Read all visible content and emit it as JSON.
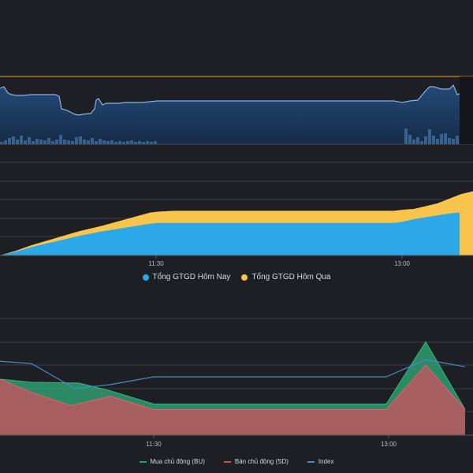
{
  "colors": {
    "background": "#1e1f25",
    "grid": "#3a3c44",
    "today": "#2ba8e8",
    "yesterday": "#f9c44c",
    "buy": "#2e9e6e",
    "sell": "#c7525e",
    "index": "#4f86c6",
    "overview_line": "#8fb2dc",
    "overview_ref": "#e8a531"
  },
  "chart_data": [
    {
      "type": "area",
      "role": "overview-navigator",
      "x": [
        0,
        5,
        10,
        15,
        20,
        30,
        40,
        50,
        60,
        70,
        75,
        78,
        85,
        95,
        100,
        105,
        115,
        120,
        122,
        125,
        130,
        135,
        140,
        150,
        160,
        170,
        180,
        190,
        200,
        250,
        300,
        350,
        400,
        450,
        500,
        510,
        520,
        530,
        540,
        545,
        550,
        560,
        570,
        575,
        580,
        583
      ],
      "values": [
        112,
        110,
        118,
        120,
        121,
        121,
        120,
        120,
        120,
        120,
        122,
        138,
        140,
        145,
        146,
        145,
        144,
        138,
        127,
        125,
        133,
        131,
        131,
        131,
        130,
        130,
        130,
        129,
        128,
        128,
        128,
        128,
        128,
        128,
        128,
        130,
        128,
        127,
        115,
        110,
        110,
        113,
        113,
        108,
        120,
        119
      ],
      "volume": [
        [
          0,
          3
        ],
        [
          5,
          5
        ],
        [
          10,
          8
        ],
        [
          15,
          10
        ],
        [
          20,
          6
        ],
        [
          25,
          11
        ],
        [
          30,
          5
        ],
        [
          35,
          9
        ],
        [
          40,
          4
        ],
        [
          45,
          7
        ],
        [
          50,
          6
        ],
        [
          55,
          5
        ],
        [
          60,
          8
        ],
        [
          65,
          4
        ],
        [
          70,
          6
        ],
        [
          75,
          12
        ],
        [
          80,
          6
        ],
        [
          85,
          5
        ],
        [
          90,
          4
        ],
        [
          95,
          9
        ],
        [
          100,
          10
        ],
        [
          105,
          6
        ],
        [
          110,
          5
        ],
        [
          115,
          8
        ],
        [
          120,
          4
        ],
        [
          125,
          7
        ],
        [
          130,
          5
        ],
        [
          135,
          4
        ],
        [
          140,
          5
        ],
        [
          145,
          3
        ],
        [
          150,
          4
        ],
        [
          155,
          3
        ],
        [
          160,
          4
        ],
        [
          165,
          5
        ],
        [
          170,
          3
        ],
        [
          175,
          4
        ],
        [
          180,
          3
        ],
        [
          185,
          4
        ],
        [
          190,
          3
        ],
        [
          195,
          4
        ],
        [
          513,
          20
        ],
        [
          518,
          12
        ],
        [
          523,
          6
        ],
        [
          528,
          9
        ],
        [
          533,
          4
        ],
        [
          538,
          10
        ],
        [
          543,
          19
        ],
        [
          548,
          11
        ],
        [
          553,
          7
        ],
        [
          558,
          13
        ],
        [
          563,
          14
        ],
        [
          568,
          8
        ],
        [
          573,
          7
        ],
        [
          578,
          11
        ]
      ],
      "ref_line": 97
    },
    {
      "type": "area",
      "role": "cumulative-trading-value",
      "x_ticks": [
        "11:30",
        "13:00"
      ],
      "series": [
        {
          "name": "Tổng GTGD Hôm Nay",
          "x": [
            0,
            20,
            40,
            60,
            80,
            100,
            130,
            160,
            190,
            200,
            220,
            260,
            300,
            350,
            400,
            450,
            500,
            510,
            525,
            540,
            555,
            570,
            580,
            583
          ],
          "values": [
            0,
            4,
            9,
            13,
            17,
            21,
            26,
            30,
            34,
            35,
            35,
            35,
            35,
            35,
            35,
            35,
            35,
            36,
            39,
            41,
            43,
            45,
            46,
            46
          ]
        },
        {
          "name": "Tổng GTGD Hôm Qua",
          "x": [
            0,
            20,
            40,
            60,
            80,
            100,
            130,
            160,
            190,
            200,
            220,
            260,
            300,
            350,
            400,
            450,
            500,
            510,
            525,
            540,
            555,
            570,
            585,
            600
          ],
          "values": [
            0,
            5,
            11,
            16,
            21,
            26,
            32,
            39,
            46,
            47,
            48,
            48,
            48,
            48,
            48,
            48,
            48,
            49,
            50,
            53,
            56,
            61,
            66,
            69
          ]
        }
      ]
    },
    {
      "type": "area",
      "role": "active-buy-sell",
      "x_ticks": [
        "11:30",
        "13:00"
      ],
      "series": [
        {
          "name": "Mua chủ động (BU)",
          "x": [
            0,
            40,
            100,
            140,
            195,
            300,
            400,
            490,
            540,
            590
          ],
          "values": [
            72,
            68,
            67,
            57,
            40,
            40,
            40,
            40,
            120,
            33
          ]
        },
        {
          "name": "Bán chủ động (SD)",
          "x": [
            0,
            40,
            90,
            140,
            195,
            300,
            400,
            490,
            540,
            590
          ],
          "values": [
            72,
            55,
            38,
            50,
            33,
            33,
            33,
            33,
            90,
            33
          ]
        },
        {
          "name": "Index",
          "x": [
            0,
            40,
            95,
            140,
            195,
            300,
            400,
            490,
            540,
            590
          ],
          "values": [
            95,
            92,
            60,
            65,
            75,
            75,
            75,
            75,
            97,
            88
          ]
        }
      ]
    }
  ]
}
